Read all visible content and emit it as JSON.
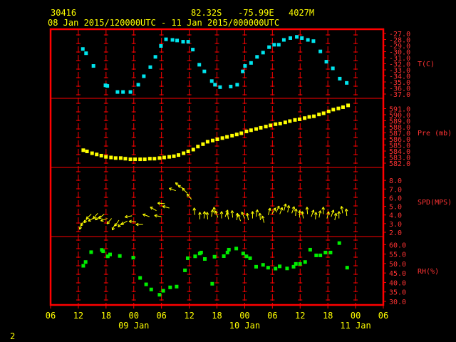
{
  "header": {
    "station_id": "30416",
    "lat": "82.32S",
    "lon": "-75.99E",
    "elevation": "4027M",
    "time_range": "08 Jan 2015/120000UTC - 11 Jan 2015/000000UTC"
  },
  "footer": {
    "page_number": "2"
  },
  "colors": {
    "frame": "#ff0000",
    "grid": "#ff0000",
    "labels": "#ff3333",
    "time_axis": "#ffff00",
    "temperature": "#00e5ee",
    "pressure": "#ffff00",
    "wind": "#ffff00",
    "humidity": "#00ee00"
  },
  "chart_data": {
    "type": "scatter",
    "x_axis": {
      "unit": "hours since 08 Jan 2015 06:00 UTC",
      "range": [
        0,
        72
      ],
      "tick_labels": [
        "06",
        "12",
        "18",
        "00",
        "06",
        "12",
        "18",
        "00",
        "06",
        "12",
        "18",
        "00",
        "06"
      ],
      "day_labels": [
        {
          "at": 18,
          "label": "09 Jan"
        },
        {
          "at": 42,
          "label": "10 Jan"
        },
        {
          "at": 66,
          "label": "11 Jan"
        }
      ]
    },
    "panels": [
      {
        "name": "temperature",
        "label": "T(C)",
        "range": [
          -37,
          -27
        ],
        "step": 1,
        "tick_labels": [
          "-27.0",
          "-28.0",
          "-29.0",
          "-30.0",
          "-31.0",
          "-32.0",
          "-33.0",
          "-34.0",
          "-35.0",
          "-36.0",
          "-37.0"
        ],
        "x": [
          6.9,
          7.6,
          9.2,
          11.8,
          12.2,
          14.4,
          15.6,
          17.2,
          18.9,
          20.1,
          21.5,
          22.6,
          23.8,
          24.9,
          26.3,
          27.3,
          28.6,
          29.7,
          30.7,
          32.1,
          33.2,
          34.8,
          35.5,
          36.6,
          38.9,
          40.3,
          41.5,
          42.0,
          43.3,
          44.6,
          45.9,
          47.2,
          48.3,
          49.3,
          50.4,
          51.8,
          53.2,
          54.3,
          55.6,
          56.8,
          58.3,
          59.6,
          61.0,
          62.5,
          64.0
        ],
        "y": [
          -29.5,
          -30.2,
          -32.3,
          -35.5,
          -35.6,
          -36.6,
          -36.6,
          -36.6,
          -35.4,
          -34.0,
          -32.5,
          -30.8,
          -29.0,
          -27.9,
          -28.0,
          -28.1,
          -28.3,
          -28.3,
          -29.6,
          -32.1,
          -33.2,
          -34.8,
          -35.4,
          -35.8,
          -35.7,
          -35.4,
          -33.2,
          -32.3,
          -31.8,
          -30.8,
          -30.1,
          -29.2,
          -28.8,
          -28.8,
          -28.0,
          -27.7,
          -27.5,
          -27.7,
          -28.0,
          -28.2,
          -29.9,
          -31.6,
          -32.7,
          -34.4,
          -35.1
        ]
      },
      {
        "name": "pressure",
        "label": "Pre (mb)",
        "range": [
          582,
          592
        ],
        "step": 1,
        "tick_labels": [
          "591.0",
          "590.0",
          "589.0",
          "588.0",
          "587.0",
          "586.0",
          "585.0",
          "584.0",
          "583.0",
          "582.0"
        ],
        "x": [
          7.0,
          7.8,
          8.9,
          9.9,
          10.9,
          11.9,
          13.0,
          14.0,
          15.1,
          16.1,
          17.2,
          18.2,
          19.3,
          20.3,
          21.4,
          22.4,
          23.5,
          24.5,
          25.6,
          26.6,
          27.6,
          28.7,
          29.7,
          30.8,
          31.8,
          32.9,
          33.9,
          35.0,
          36.0,
          37.1,
          38.1,
          39.2,
          40.2,
          41.2,
          42.3,
          43.3,
          44.4,
          45.4,
          46.5,
          47.5,
          48.6,
          49.6,
          50.7,
          51.7,
          52.8,
          53.8,
          54.9,
          55.9,
          56.9,
          58.0,
          59.0,
          60.1,
          61.1,
          62.2,
          63.2,
          64.3
        ],
        "y": [
          584.2,
          584.0,
          583.7,
          583.5,
          583.3,
          583.1,
          583.0,
          582.9,
          582.9,
          582.8,
          582.7,
          582.7,
          582.7,
          582.7,
          582.8,
          582.8,
          582.9,
          583.0,
          583.1,
          583.2,
          583.4,
          583.7,
          584.0,
          584.3,
          584.8,
          585.2,
          585.6,
          585.8,
          586.0,
          586.2,
          586.4,
          586.6,
          586.8,
          587.0,
          587.3,
          587.5,
          587.7,
          587.9,
          588.1,
          588.3,
          588.5,
          588.6,
          588.8,
          589.0,
          589.2,
          589.3,
          589.5,
          589.7,
          589.8,
          590.1,
          590.3,
          590.6,
          590.9,
          591.1,
          591.3,
          591.6
        ]
      },
      {
        "name": "wind",
        "label": "SPD(MPS)",
        "range": [
          2,
          9
        ],
        "step": 1,
        "tick_labels": [
          "8.0",
          "7.0",
          "6.0",
          "5.0",
          "4.0",
          "3.0",
          "2.0"
        ],
        "x": [
          6.8,
          7.4,
          8.1,
          8.8,
          9.5,
          10.2,
          10.9,
          11.6,
          12.3,
          13.2,
          14.0,
          14.8,
          15.7,
          16.6,
          17.6,
          18.5,
          20.0,
          21.4,
          22.9,
          24.0,
          24.7,
          25.7,
          27.1,
          28.2,
          28.9,
          29.6,
          30.5,
          31.2,
          32.3,
          33.2,
          34.0,
          34.8,
          35.6,
          36.2,
          37.0,
          37.8,
          38.5,
          39.4,
          40.3,
          41.1,
          42.0,
          42.8,
          43.7,
          44.5,
          45.4,
          46.2,
          47.1,
          47.9,
          48.8,
          49.6,
          50.5,
          51.3,
          52.2,
          53.0,
          53.9,
          54.7,
          55.6,
          56.4,
          57.3,
          58.1,
          59.0,
          59.8,
          60.7,
          61.5,
          62.4,
          63.2,
          64.1
        ],
        "y": [
          3.1,
          3.4,
          3.8,
          4.1,
          3.7,
          4.2,
          3.9,
          4.1,
          3.6,
          3.6,
          3.0,
          3.4,
          3.2,
          3.3,
          3.9,
          3.2,
          2.9,
          3.8,
          4.5,
          3.8,
          5.3,
          4.8,
          6.8,
          7.2,
          7.0,
          6.5,
          5.8,
          4.0,
          3.5,
          3.6,
          3.5,
          3.8,
          4.1,
          3.7,
          3.6,
          3.8,
          3.5,
          3.7,
          3.4,
          3.3,
          3.6,
          3.4,
          3.6,
          3.8,
          3.4,
          3.1,
          4.0,
          4.1,
          4.3,
          4.1,
          4.5,
          4.3,
          4.2,
          3.9,
          3.7,
          3.6,
          4.1,
          3.8,
          3.5,
          3.7,
          4.1,
          3.6,
          3.8,
          3.4,
          3.6,
          4.2,
          3.9
        ],
        "direction_deg": [
          250,
          235,
          240,
          225,
          210,
          230,
          215,
          220,
          200,
          230,
          245,
          235,
          225,
          210,
          190,
          175,
          180,
          160,
          150,
          170,
          175,
          165,
          160,
          140,
          150,
          135,
          130,
          95,
          90,
          85,
          95,
          80,
          100,
          110,
          90,
          70,
          100,
          95,
          85,
          110,
          115,
          100,
          90,
          80,
          95,
          105,
          75,
          60,
          65,
          70,
          75,
          80,
          70,
          85,
          90,
          100,
          95,
          70,
          85,
          80,
          90,
          75,
          70,
          80,
          90,
          100,
          95
        ]
      },
      {
        "name": "humidity",
        "label": "RH(%)",
        "range": [
          30,
          62
        ],
        "step": 5,
        "tick_labels": [
          "60.0",
          "55.0",
          "50.0",
          "45.0",
          "40.0",
          "35.0",
          "30.0"
        ],
        "x": [
          7.0,
          7.5,
          8.7,
          11.0,
          11.3,
          12.3,
          12.8,
          14.9,
          17.8,
          19.3,
          20.6,
          21.7,
          23.5,
          24.3,
          25.8,
          27.2,
          29.0,
          29.6,
          31.2,
          32.2,
          32.5,
          33.3,
          34.9,
          35.4,
          37.4,
          38.2,
          38.5,
          40.1,
          41.6,
          42.3,
          43.1,
          44.4,
          45.9,
          47.0,
          48.6,
          49.5,
          51.1,
          52.5,
          53.0,
          53.9,
          55.0,
          56.1,
          57.4,
          58.3,
          59.4,
          60.5,
          62.4,
          64.1
        ],
        "y": [
          49.0,
          51.0,
          56.2,
          57.4,
          56.7,
          54.0,
          55.0,
          54.2,
          53.3,
          42.6,
          39.2,
          36.5,
          33.7,
          35.8,
          37.6,
          38.0,
          46.6,
          53.0,
          54.0,
          55.5,
          56.0,
          52.6,
          39.5,
          53.8,
          54.1,
          56.0,
          57.5,
          58.1,
          55.5,
          54.0,
          53.0,
          48.5,
          49.5,
          48.0,
          47.5,
          48.7,
          47.6,
          48.5,
          50.0,
          50.0,
          51.0,
          57.5,
          54.5,
          54.5,
          56.0,
          56.0,
          61.0,
          48.0
        ]
      }
    ]
  }
}
